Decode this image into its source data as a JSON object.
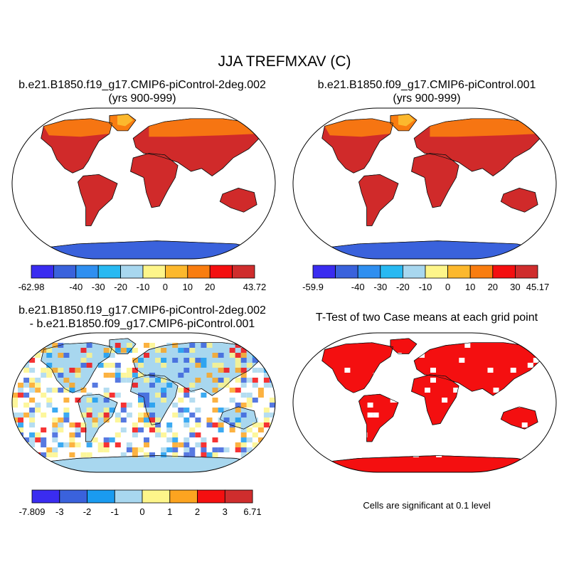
{
  "main_title": "JJA TREFMXAV (C)",
  "panels": [
    {
      "title_line1": "b.e21.B1850.f19_g17.CMIP6-piControl-2deg.002",
      "title_line2": "(yrs 900-999)"
    },
    {
      "title_line1": "b.e21.B1850.f09_g17.CMIP6-piControl.001",
      "title_line2": "(yrs 900-999)"
    },
    {
      "title_line1": "b.e21.B1850.f19_g17.CMIP6-piControl-2deg.002",
      "title_line2": "- b.e21.B1850.f09_g17.CMIP6-piControl.001"
    },
    {
      "title_line1": "T-Test of two Case means at each grid point",
      "title_line2": ""
    }
  ],
  "colorbars": [
    {
      "colors": [
        "#3a2cf0",
        "#3a62dc",
        "#2f8ff0",
        "#28b9f2",
        "#a8d7ef",
        "#fdf58a",
        "#fcb82d",
        "#f97d10",
        "#f40f10",
        "#cf2d2d"
      ],
      "labels": [
        "-62.98",
        "",
        "-40",
        "-30",
        "-20",
        "-10",
        "0",
        "10",
        "20",
        "",
        "43.72"
      ]
    },
    {
      "colors": [
        "#3a2cf0",
        "#3a62dc",
        "#2f8ff0",
        "#28b9f2",
        "#a8d7ef",
        "#fdf58a",
        "#fcb82d",
        "#f97d10",
        "#f40f10",
        "#cf2d2d"
      ],
      "labels": [
        "-59.9",
        "",
        "-40",
        "-30",
        "-20",
        "-10",
        "0",
        "10",
        "20",
        "30",
        "45.17"
      ]
    },
    {
      "colors": [
        "#3a2cf0",
        "#3a62dc",
        "#1a9bf0",
        "#a8d7ef",
        "#fdf58a",
        "#fca420",
        "#f40f10",
        "#cf2d2d"
      ],
      "labels": [
        "-7.809",
        "-3",
        "-2",
        "-1",
        "0",
        "1",
        "2",
        "3",
        "6.71"
      ]
    }
  ],
  "significance_note": "Cells are significant at 0.1 level",
  "map_colors": {
    "ocean": "#ffffff",
    "mean_land_hot": "#d02a2a",
    "mean_land_warm": "#f40f10",
    "mean_land_mild": "#f97d10",
    "mean_land_cool": "#fcb82d",
    "mean_ice": "#3a62dc",
    "ttest_sig": "#f40f10",
    "ttest_ice": "#a8d7ef"
  }
}
